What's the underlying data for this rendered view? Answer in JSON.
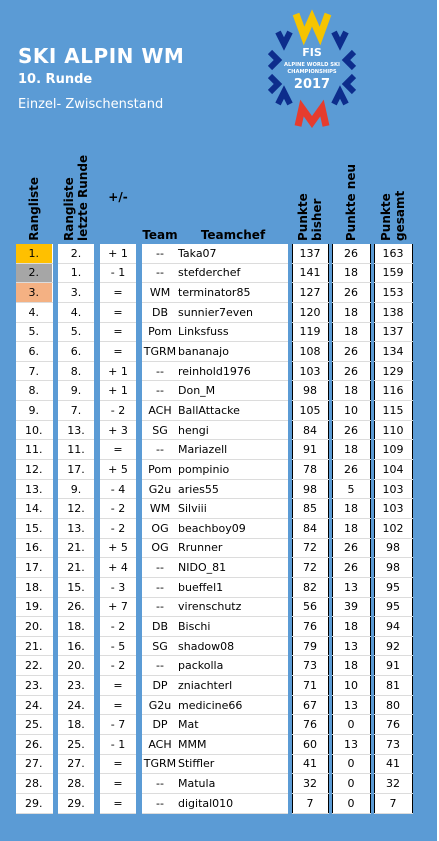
{
  "header": {
    "title": "SKI ALPIN WM",
    "round": "10. Runde",
    "subtitle": "Einzel- Zwischenstand"
  },
  "logo": {
    "text1": "FIS",
    "text2": "ALPINE WORLD SKI",
    "text3": "CHAMPIONSHIPS",
    "year": "2017",
    "colors": [
      "#f5c400",
      "#0d2d8c",
      "#e63c2e"
    ]
  },
  "columns": {
    "rang": "Rangliste",
    "rang_last": "Rangliste letzte Runde",
    "diff": "+/-",
    "team": "Team",
    "chef": "Teamchef",
    "punkte_bisher": "Punkte bisher",
    "punkte_neu": "Punkte neu",
    "punkte_gesamt": "Punkte gesamt"
  },
  "rows": [
    {
      "rang": "1.",
      "last": "2.",
      "diff": "+ 1",
      "team": "--",
      "chef": "Taka07",
      "bisher": "137",
      "neu": "26",
      "gesamt": "163"
    },
    {
      "rang": "2.",
      "last": "1.",
      "diff": "- 1",
      "team": "--",
      "chef": "stefderchef",
      "bisher": "141",
      "neu": "18",
      "gesamt": "159"
    },
    {
      "rang": "3.",
      "last": "3.",
      "diff": "=",
      "team": "WM",
      "chef": "terminator85",
      "bisher": "127",
      "neu": "26",
      "gesamt": "153"
    },
    {
      "rang": "4.",
      "last": "4.",
      "diff": "=",
      "team": "DB",
      "chef": "sunnier7even",
      "bisher": "120",
      "neu": "18",
      "gesamt": "138"
    },
    {
      "rang": "5.",
      "last": "5.",
      "diff": "=",
      "team": "Pom",
      "chef": "Linksfuss",
      "bisher": "119",
      "neu": "18",
      "gesamt": "137"
    },
    {
      "rang": "6.",
      "last": "6.",
      "diff": "=",
      "team": "TGRM",
      "chef": "bananajo",
      "bisher": "108",
      "neu": "26",
      "gesamt": "134"
    },
    {
      "rang": "7.",
      "last": "8.",
      "diff": "+ 1",
      "team": "--",
      "chef": "reinhold1976",
      "bisher": "103",
      "neu": "26",
      "gesamt": "129"
    },
    {
      "rang": "8.",
      "last": "9.",
      "diff": "+ 1",
      "team": "--",
      "chef": "Don_M",
      "bisher": "98",
      "neu": "18",
      "gesamt": "116"
    },
    {
      "rang": "9.",
      "last": "7.",
      "diff": "- 2",
      "team": "ACH",
      "chef": "BallAttacke",
      "bisher": "105",
      "neu": "10",
      "gesamt": "115"
    },
    {
      "rang": "10.",
      "last": "13.",
      "diff": "+ 3",
      "team": "SG",
      "chef": "hengi",
      "bisher": "84",
      "neu": "26",
      "gesamt": "110"
    },
    {
      "rang": "11.",
      "last": "11.",
      "diff": "=",
      "team": "--",
      "chef": "Mariazell",
      "bisher": "91",
      "neu": "18",
      "gesamt": "109"
    },
    {
      "rang": "12.",
      "last": "17.",
      "diff": "+ 5",
      "team": "Pom",
      "chef": "pompinio",
      "bisher": "78",
      "neu": "26",
      "gesamt": "104"
    },
    {
      "rang": "13.",
      "last": "9.",
      "diff": "- 4",
      "team": "G2u",
      "chef": "aries55",
      "bisher": "98",
      "neu": "5",
      "gesamt": "103"
    },
    {
      "rang": "14.",
      "last": "12.",
      "diff": "- 2",
      "team": "WM",
      "chef": "Silviii",
      "bisher": "85",
      "neu": "18",
      "gesamt": "103"
    },
    {
      "rang": "15.",
      "last": "13.",
      "diff": "- 2",
      "team": "OG",
      "chef": "beachboy09",
      "bisher": "84",
      "neu": "18",
      "gesamt": "102"
    },
    {
      "rang": "16.",
      "last": "21.",
      "diff": "+ 5",
      "team": "OG",
      "chef": "Rrunner",
      "bisher": "72",
      "neu": "26",
      "gesamt": "98"
    },
    {
      "rang": "17.",
      "last": "21.",
      "diff": "+ 4",
      "team": "--",
      "chef": "NIDO_81",
      "bisher": "72",
      "neu": "26",
      "gesamt": "98"
    },
    {
      "rang": "18.",
      "last": "15.",
      "diff": "- 3",
      "team": "--",
      "chef": "bueffel1",
      "bisher": "82",
      "neu": "13",
      "gesamt": "95"
    },
    {
      "rang": "19.",
      "last": "26.",
      "diff": "+ 7",
      "team": "--",
      "chef": "virenschutz",
      "bisher": "56",
      "neu": "39",
      "gesamt": "95"
    },
    {
      "rang": "20.",
      "last": "18.",
      "diff": "- 2",
      "team": "DB",
      "chef": "Bischi",
      "bisher": "76",
      "neu": "18",
      "gesamt": "94"
    },
    {
      "rang": "21.",
      "last": "16.",
      "diff": "- 5",
      "team": "SG",
      "chef": "shadow08",
      "bisher": "79",
      "neu": "13",
      "gesamt": "92"
    },
    {
      "rang": "22.",
      "last": "20.",
      "diff": "- 2",
      "team": "--",
      "chef": "packolla",
      "bisher": "73",
      "neu": "18",
      "gesamt": "91"
    },
    {
      "rang": "23.",
      "last": "23.",
      "diff": "=",
      "team": "DP",
      "chef": "zniachterl",
      "bisher": "71",
      "neu": "10",
      "gesamt": "81"
    },
    {
      "rang": "24.",
      "last": "24.",
      "diff": "=",
      "team": "G2u",
      "chef": "medicine66",
      "bisher": "67",
      "neu": "13",
      "gesamt": "80"
    },
    {
      "rang": "25.",
      "last": "18.",
      "diff": "- 7",
      "team": "DP",
      "chef": "Mat",
      "bisher": "76",
      "neu": "0",
      "gesamt": "76"
    },
    {
      "rang": "26.",
      "last": "25.",
      "diff": "- 1",
      "team": "ACH",
      "chef": "MMM",
      "bisher": "60",
      "neu": "13",
      "gesamt": "73"
    },
    {
      "rang": "27.",
      "last": "27.",
      "diff": "=",
      "team": "TGRM",
      "chef": "Stiffler",
      "bisher": "41",
      "neu": "0",
      "gesamt": "41"
    },
    {
      "rang": "28.",
      "last": "28.",
      "diff": "=",
      "team": "--",
      "chef": "Matula",
      "bisher": "32",
      "neu": "0",
      "gesamt": "32"
    },
    {
      "rang": "29.",
      "last": "29.",
      "diff": "=",
      "team": "--",
      "chef": "digital010",
      "bisher": "7",
      "neu": "0",
      "gesamt": "7"
    }
  ]
}
